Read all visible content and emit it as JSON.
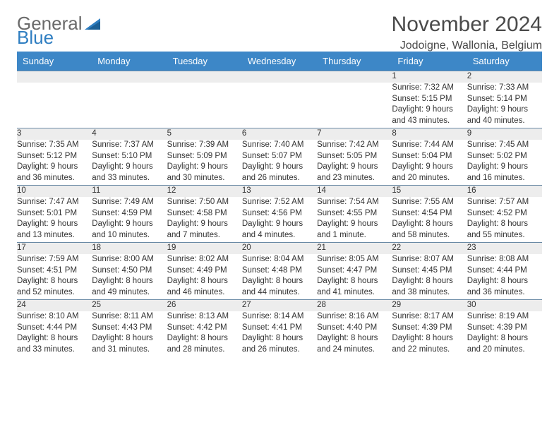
{
  "logo": {
    "text_gray": "General",
    "text_blue": "Blue",
    "tri_color": "#2f7ec1"
  },
  "title": "November 2024",
  "location": "Jodoigne, Wallonia, Belgium",
  "colors": {
    "header_bg": "#3d87c7",
    "header_text": "#ffffff",
    "daynum_bg": "#ededed",
    "daynum_border": "#6a8aa5",
    "body_text": "#333333",
    "title_text": "#4a4a4a"
  },
  "daynames": [
    "Sunday",
    "Monday",
    "Tuesday",
    "Wednesday",
    "Thursday",
    "Friday",
    "Saturday"
  ],
  "weeks": [
    [
      null,
      null,
      null,
      null,
      null,
      {
        "n": "1",
        "sr": "7:32 AM",
        "ss": "5:15 PM",
        "dl": "9 hours and 43 minutes."
      },
      {
        "n": "2",
        "sr": "7:33 AM",
        "ss": "5:14 PM",
        "dl": "9 hours and 40 minutes."
      }
    ],
    [
      {
        "n": "3",
        "sr": "7:35 AM",
        "ss": "5:12 PM",
        "dl": "9 hours and 36 minutes."
      },
      {
        "n": "4",
        "sr": "7:37 AM",
        "ss": "5:10 PM",
        "dl": "9 hours and 33 minutes."
      },
      {
        "n": "5",
        "sr": "7:39 AM",
        "ss": "5:09 PM",
        "dl": "9 hours and 30 minutes."
      },
      {
        "n": "6",
        "sr": "7:40 AM",
        "ss": "5:07 PM",
        "dl": "9 hours and 26 minutes."
      },
      {
        "n": "7",
        "sr": "7:42 AM",
        "ss": "5:05 PM",
        "dl": "9 hours and 23 minutes."
      },
      {
        "n": "8",
        "sr": "7:44 AM",
        "ss": "5:04 PM",
        "dl": "9 hours and 20 minutes."
      },
      {
        "n": "9",
        "sr": "7:45 AM",
        "ss": "5:02 PM",
        "dl": "9 hours and 16 minutes."
      }
    ],
    [
      {
        "n": "10",
        "sr": "7:47 AM",
        "ss": "5:01 PM",
        "dl": "9 hours and 13 minutes."
      },
      {
        "n": "11",
        "sr": "7:49 AM",
        "ss": "4:59 PM",
        "dl": "9 hours and 10 minutes."
      },
      {
        "n": "12",
        "sr": "7:50 AM",
        "ss": "4:58 PM",
        "dl": "9 hours and 7 minutes."
      },
      {
        "n": "13",
        "sr": "7:52 AM",
        "ss": "4:56 PM",
        "dl": "9 hours and 4 minutes."
      },
      {
        "n": "14",
        "sr": "7:54 AM",
        "ss": "4:55 PM",
        "dl": "9 hours and 1 minute."
      },
      {
        "n": "15",
        "sr": "7:55 AM",
        "ss": "4:54 PM",
        "dl": "8 hours and 58 minutes."
      },
      {
        "n": "16",
        "sr": "7:57 AM",
        "ss": "4:52 PM",
        "dl": "8 hours and 55 minutes."
      }
    ],
    [
      {
        "n": "17",
        "sr": "7:59 AM",
        "ss": "4:51 PM",
        "dl": "8 hours and 52 minutes."
      },
      {
        "n": "18",
        "sr": "8:00 AM",
        "ss": "4:50 PM",
        "dl": "8 hours and 49 minutes."
      },
      {
        "n": "19",
        "sr": "8:02 AM",
        "ss": "4:49 PM",
        "dl": "8 hours and 46 minutes."
      },
      {
        "n": "20",
        "sr": "8:04 AM",
        "ss": "4:48 PM",
        "dl": "8 hours and 44 minutes."
      },
      {
        "n": "21",
        "sr": "8:05 AM",
        "ss": "4:47 PM",
        "dl": "8 hours and 41 minutes."
      },
      {
        "n": "22",
        "sr": "8:07 AM",
        "ss": "4:45 PM",
        "dl": "8 hours and 38 minutes."
      },
      {
        "n": "23",
        "sr": "8:08 AM",
        "ss": "4:44 PM",
        "dl": "8 hours and 36 minutes."
      }
    ],
    [
      {
        "n": "24",
        "sr": "8:10 AM",
        "ss": "4:44 PM",
        "dl": "8 hours and 33 minutes."
      },
      {
        "n": "25",
        "sr": "8:11 AM",
        "ss": "4:43 PM",
        "dl": "8 hours and 31 minutes."
      },
      {
        "n": "26",
        "sr": "8:13 AM",
        "ss": "4:42 PM",
        "dl": "8 hours and 28 minutes."
      },
      {
        "n": "27",
        "sr": "8:14 AM",
        "ss": "4:41 PM",
        "dl": "8 hours and 26 minutes."
      },
      {
        "n": "28",
        "sr": "8:16 AM",
        "ss": "4:40 PM",
        "dl": "8 hours and 24 minutes."
      },
      {
        "n": "29",
        "sr": "8:17 AM",
        "ss": "4:39 PM",
        "dl": "8 hours and 22 minutes."
      },
      {
        "n": "30",
        "sr": "8:19 AM",
        "ss": "4:39 PM",
        "dl": "8 hours and 20 minutes."
      }
    ]
  ]
}
